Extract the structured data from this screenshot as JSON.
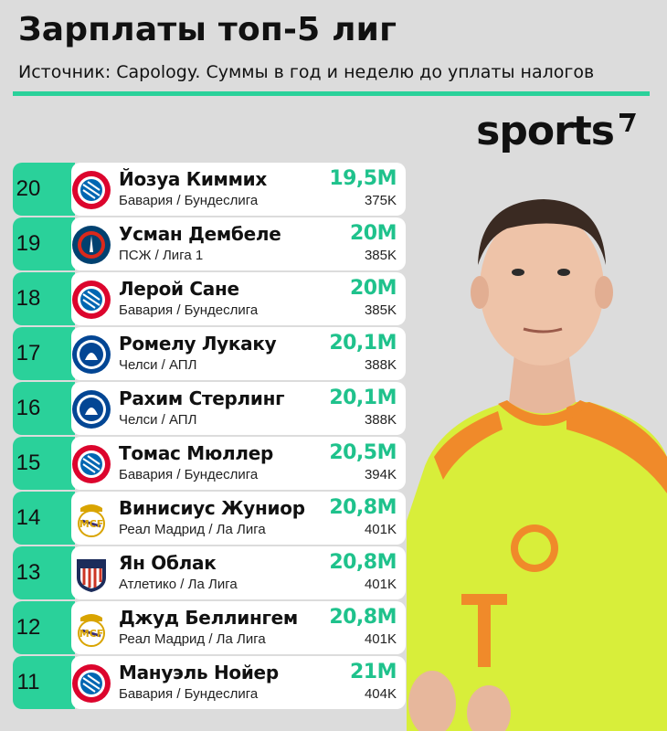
{
  "header": {
    "title": "Зарплаты топ-5 лиг",
    "subtitle": "Источник: Capology. Суммы в год и неделю до уплаты налогов",
    "brand": "sports",
    "accent": "#2ad19a"
  },
  "rows": [
    {
      "rank": "20",
      "name": "Йозуа Киммих",
      "club": "Бавария / Бундеслига",
      "salary": "19,5M",
      "weekly": "375K",
      "logo": "bayern-logo"
    },
    {
      "rank": "19",
      "name": "Усман Дембеле",
      "club": "ПСЖ / Лига 1",
      "salary": "20M",
      "weekly": "385K",
      "logo": "psg-logo"
    },
    {
      "rank": "18",
      "name": "Лерой Сане",
      "club": "Бавария / Бундеслига",
      "salary": "20M",
      "weekly": "385K",
      "logo": "bayern-logo"
    },
    {
      "rank": "17",
      "name": "Ромелу Лукаку",
      "club": "Челси / АПЛ",
      "salary": "20,1M",
      "weekly": "388K",
      "logo": "chelsea-logo"
    },
    {
      "rank": "16",
      "name": "Рахим Стерлинг",
      "club": "Челси / АПЛ",
      "salary": "20,1M",
      "weekly": "388K",
      "logo": "chelsea-logo"
    },
    {
      "rank": "15",
      "name": "Томас Мюллер",
      "club": "Бавария / Бундеслига",
      "salary": "20,5M",
      "weekly": "394K",
      "logo": "bayern-logo"
    },
    {
      "rank": "14",
      "name": "Винисиус Жуниор",
      "club": "Реал Мадрид / Ла Лига",
      "salary": "20,8M",
      "weekly": "401K",
      "logo": "real-madrid-logo"
    },
    {
      "rank": "13",
      "name": "Ян Облак",
      "club": "Атлетико / Ла Лига",
      "salary": "20,8M",
      "weekly": "401K",
      "logo": "atletico-logo"
    },
    {
      "rank": "12",
      "name": "Джуд Беллингем",
      "club": "Реал Мадрид / Ла Лига",
      "salary": "20,8M",
      "weekly": "401K",
      "logo": "real-madrid-logo"
    },
    {
      "rank": "11",
      "name": "Мануэль Нойер",
      "club": "Бавария / Бундеслига",
      "salary": "21M",
      "weekly": "404K",
      "logo": "bayern-logo"
    }
  ]
}
